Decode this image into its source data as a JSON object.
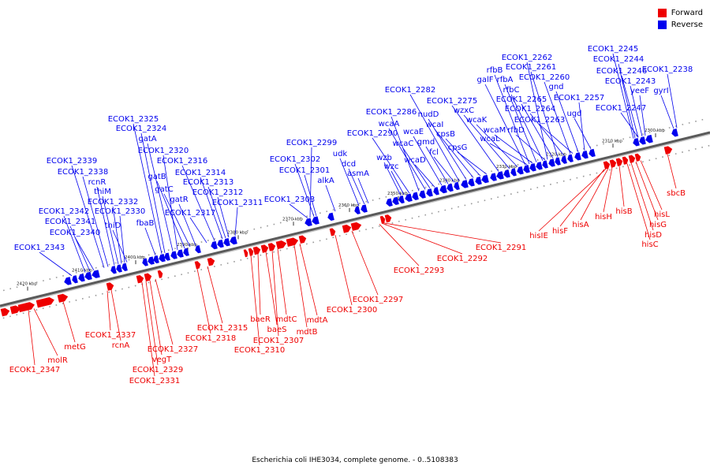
{
  "legend": {
    "forward_label": "Forward",
    "reverse_label": "Reverse",
    "forward_color": "#ee0000",
    "reverse_color": "#0000ee"
  },
  "caption": "Escherichia coli IHE3034, complete genome. - 0..5108383",
  "ticks": [
    "2300 kbp",
    "2310 kbp",
    "2320 kbp",
    "2330 kbp",
    "2340 kbp",
    "2350 kbp",
    "2360 kbp",
    "2370 kbp",
    "2380 kbp",
    "2390 kbp",
    "2400 kbp",
    "2410 kbp",
    "2420 kbp"
  ],
  "reverse_labels": [
    "gyrI",
    "ECOK1_2238",
    "yeeF",
    "ECOK1_2243",
    "ECOK1_2246",
    "ECOK1_2244",
    "ECOK1_2245",
    "ECOK1_2247",
    "ugd",
    "ECOK1_2257",
    "gnd",
    "ECOK1_2260",
    "ECOK1_2261",
    "ECOK1_2262",
    "ECOK1_2263",
    "ECOK1_2264",
    "ECOK1_2265",
    "rfbC",
    "rfbA",
    "rfbB",
    "galF",
    "rfbD",
    "wcaM",
    "wcaL",
    "wcaK",
    "wzxC",
    "ECOK1_2275",
    "cpsG",
    "cpsB",
    "wcaI",
    "nudD",
    "ECOK1_2282",
    "fcl",
    "gmd",
    "wcaE",
    "wcaD",
    "wcaC",
    "wcaA",
    "ECOK1_2286",
    "ECOK1_2290",
    "wzb",
    "wzc",
    "asmA",
    "dcd",
    "udk",
    "alkA",
    "ECOK1_2301",
    "ECOK1_2302",
    "ECOK1_2299",
    "ECOK1_2303",
    "ECOK1_2311",
    "ECOK1_2312",
    "ECOK1_2313",
    "ECOK1_2314",
    "ECOK1_2316",
    "ECOK1_2317",
    "gatR",
    "gatC",
    "gatB",
    "ECOK1_2320",
    "gatA",
    "ECOK1_2324",
    "ECOK1_2325",
    "fbaB",
    "thiD",
    "ECOK1_2330",
    "ECOK1_2332",
    "thiM",
    "rcnR",
    "ECOK1_2338",
    "ECOK1_2339",
    "ECOK1_2340",
    "ECOK1_2341",
    "ECOK1_2342",
    "ECOK1_2343"
  ],
  "forward_labels": [
    "sbcB",
    "hisL",
    "hisG",
    "hisD",
    "hisC",
    "hisB",
    "hisH",
    "hisA",
    "hisF",
    "hisIE",
    "ECOK1_2291",
    "ECOK1_2292",
    "ECOK1_2293",
    "ECOK1_2297",
    "ECOK1_2300",
    "mdtA",
    "mdtB",
    "mdtC",
    "ECOK1_2307",
    "baeS",
    "baeR",
    "ECOK1_2310",
    "ECOK1_2315",
    "ECOK1_2318",
    "ECOK1_2327",
    "vegT",
    "ECOK1_2329",
    "ECOK1_2331",
    "ECOK1_2337",
    "rcnA",
    "metG",
    "molR",
    "ECOK1_2347"
  ]
}
